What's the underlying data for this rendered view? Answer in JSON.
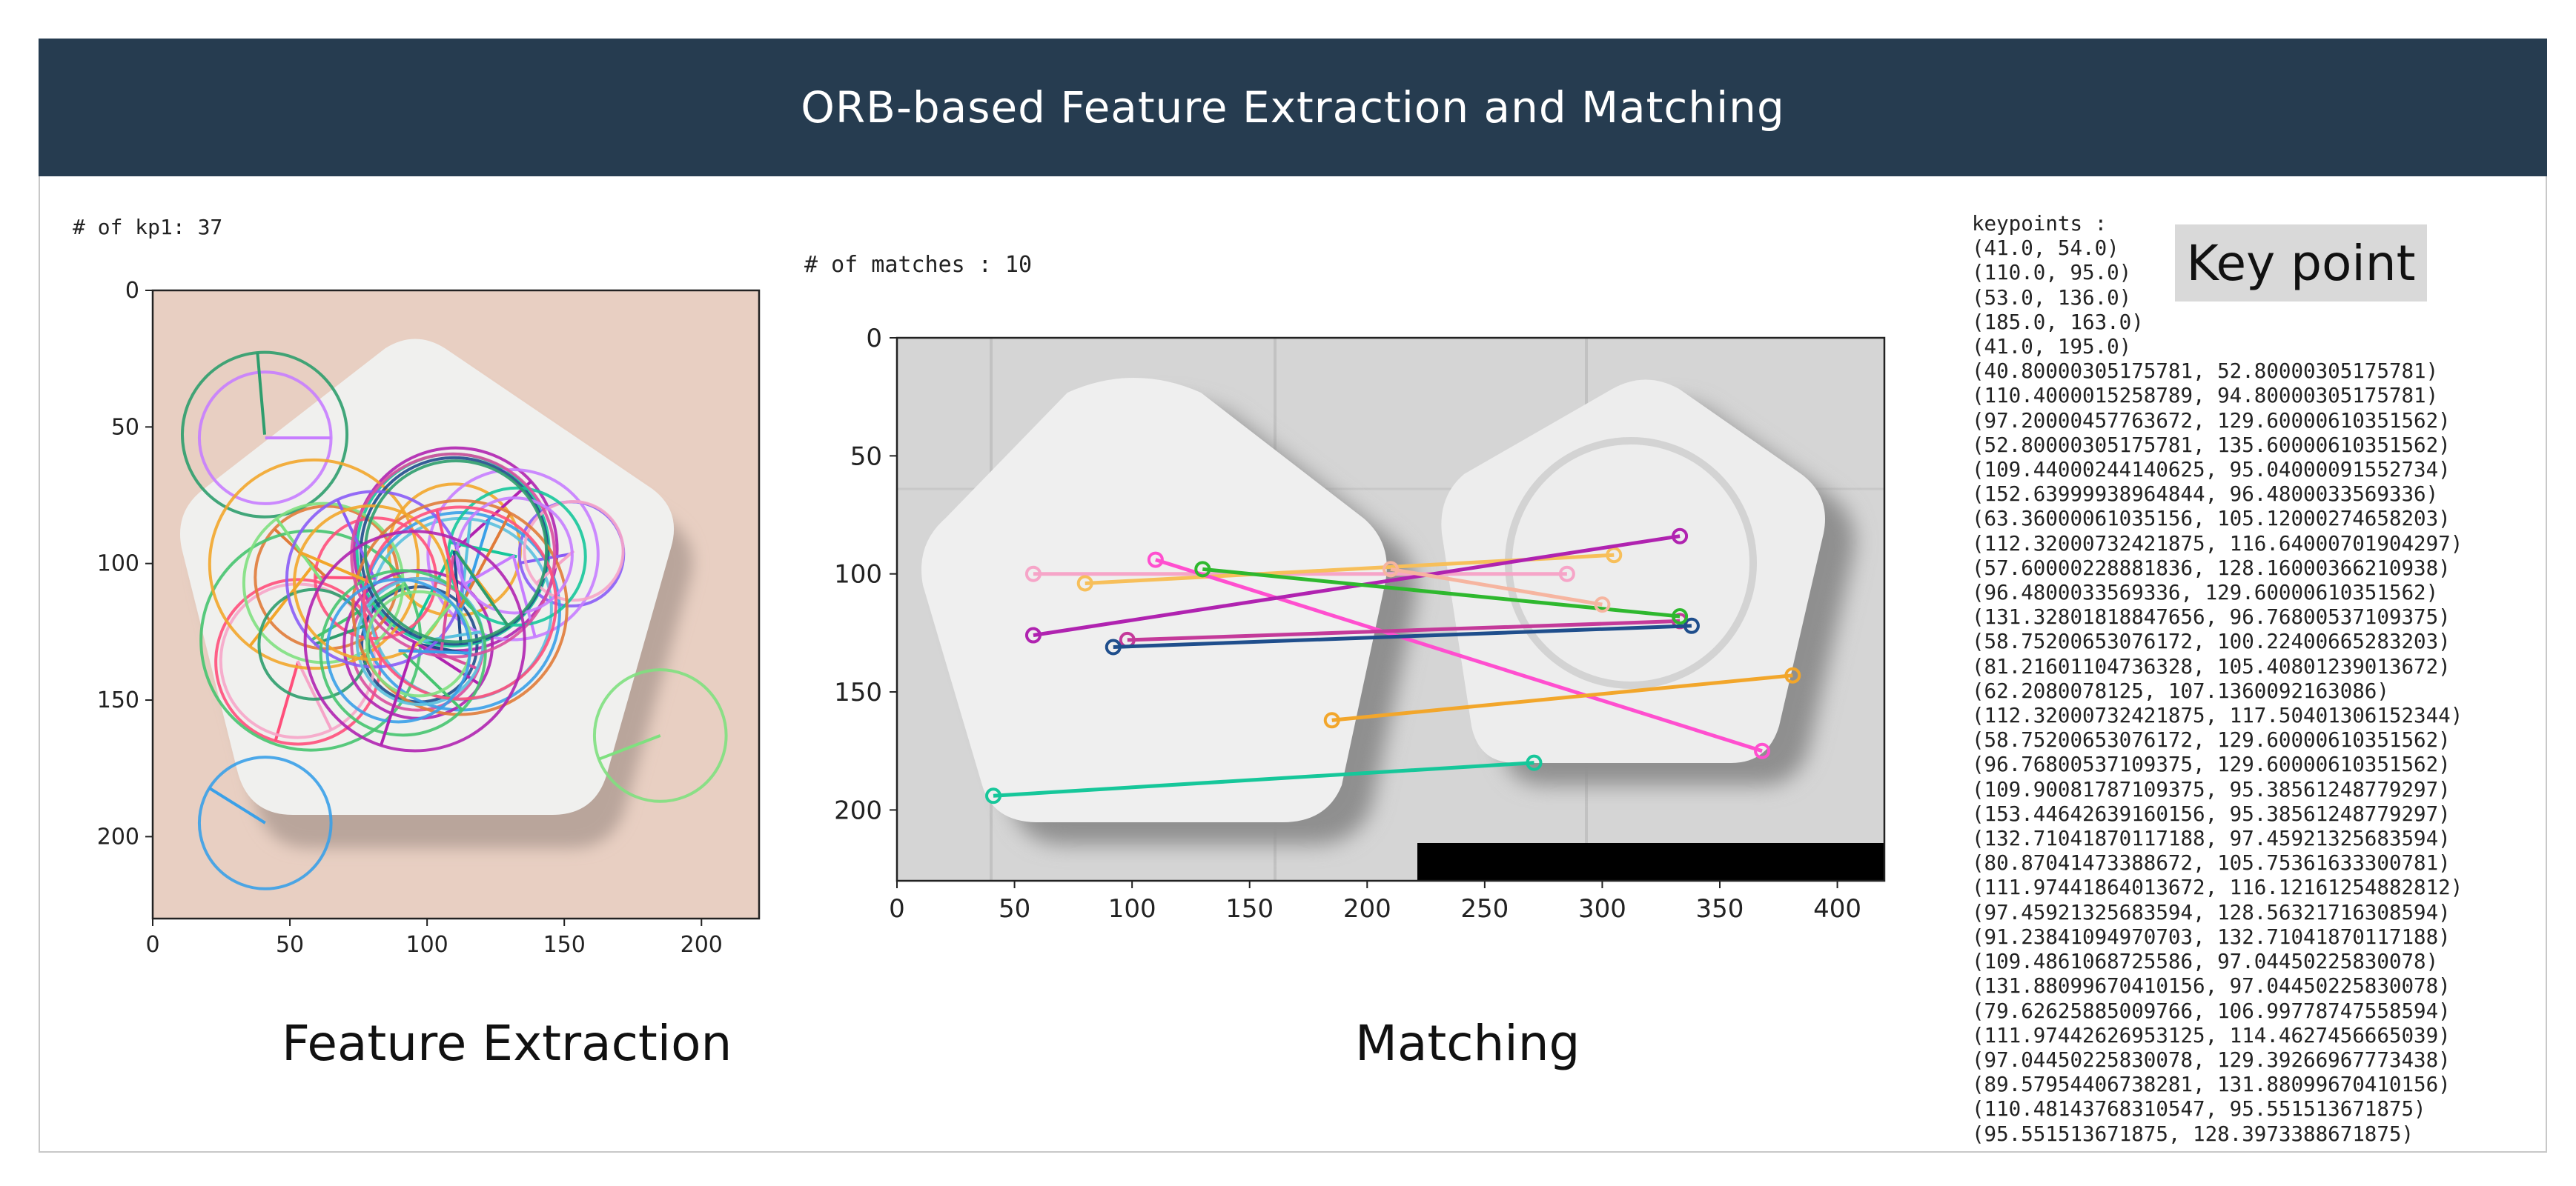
{
  "header": {
    "title": "ORB-based Feature Extraction and Matching"
  },
  "feature_panel": {
    "kp_count_text": "# of kp1: 37",
    "caption": "Feature Extraction",
    "x_ticks": [
      "0",
      "50",
      "100",
      "150",
      "200"
    ],
    "y_ticks": [
      "0",
      "50",
      "100",
      "150",
      "200"
    ],
    "colors": {
      "background": "#e8cfc2",
      "pill": "#f1f1ef",
      "shadow": "#bdaea6"
    }
  },
  "matching_panel": {
    "match_count_text": "# of matches :  10",
    "caption": "Matching",
    "x_ticks": [
      "0",
      "50",
      "100",
      "150",
      "200",
      "250",
      "300",
      "350",
      "400"
    ],
    "y_ticks": [
      "0",
      "50",
      "100",
      "150",
      "200"
    ],
    "match_lines": [
      {
        "x1": 58,
        "y1": 100,
        "x2": 285,
        "y2": 100,
        "color": "#f6a5c8"
      },
      {
        "x1": 80,
        "y1": 104,
        "x2": 305,
        "y2": 92,
        "color": "#f7bf5a"
      },
      {
        "x1": 110,
        "y1": 94,
        "x2": 368,
        "y2": 175,
        "color": "#ff4fcf"
      },
      {
        "x1": 58,
        "y1": 126,
        "x2": 333,
        "y2": 84,
        "color": "#b023b0"
      },
      {
        "x1": 98,
        "y1": 128,
        "x2": 333,
        "y2": 120,
        "color": "#c43a9a"
      },
      {
        "x1": 92,
        "y1": 131,
        "x2": 338,
        "y2": 122,
        "color": "#1f4e8c"
      },
      {
        "x1": 130,
        "y1": 98,
        "x2": 333,
        "y2": 118,
        "color": "#2eb82e"
      },
      {
        "x1": 185,
        "y1": 162,
        "x2": 381,
        "y2": 143,
        "color": "#f2a62b"
      },
      {
        "x1": 41,
        "y1": 194,
        "x2": 271,
        "y2": 180,
        "color": "#16c79a"
      },
      {
        "x1": 210,
        "y1": 98,
        "x2": 300,
        "y2": 113,
        "color": "#f6b5a0"
      }
    ]
  },
  "keypoint_panel": {
    "label": "Key point",
    "list_header": "keypoints :",
    "keypoints": [
      "(41.0, 54.0)",
      "(110.0, 95.0)",
      "(53.0, 136.0)",
      "(185.0, 163.0)",
      "(41.0, 195.0)",
      "(40.80000305175781, 52.80000305175781)",
      "(110.4000015258789, 94.80000305175781)",
      "(97.20000457763672, 129.60000610351562)",
      "(52.80000305175781, 135.60000610351562)",
      "(109.44000244140625, 95.04000091552734)",
      "(152.63999938964844, 96.4800033569336)",
      "(63.36000061035156, 105.12000274658203)",
      "(112.32000732421875, 116.64000701904297)",
      "(57.60000228881836, 128.16000366210938)",
      "(96.4800033569336, 129.60000610351562)",
      "(131.32801818847656, 96.76800537109375)",
      "(58.75200653076172, 100.22400665283203)",
      "(81.21601104736328, 105.40801239013672)",
      "(62.2080078125, 107.1360092163086)",
      "(112.32000732421875, 117.50401306152344)",
      "(58.75200653076172, 129.60000610351562)",
      "(96.76800537109375, 129.60000610351562)",
      "(109.90081787109375, 95.38561248779297)",
      "(153.44642639160156, 95.38561248779297)",
      "(132.71041870117188, 97.45921325683594)",
      "(80.87041473388672, 105.75361633300781)",
      "(111.97441864013672, 116.12161254882812)",
      "(97.45921325683594, 128.56321716308594)",
      "(91.23841094970703, 132.71041870117188)",
      "(109.4861068725586, 97.04450225830078)",
      "(131.88099670410156, 97.04450225830078)",
      "(79.62625885009766, 106.99778747558594)",
      "(111.97442626953125, 114.4627456665039)",
      "(97.04450225830078, 129.39266967773438)",
      "(89.57954406738281, 131.88099670410156)",
      "(110.48143768310547, 95.551513671875)",
      "(95.551513671875, 128.3973388671875)"
    ]
  }
}
